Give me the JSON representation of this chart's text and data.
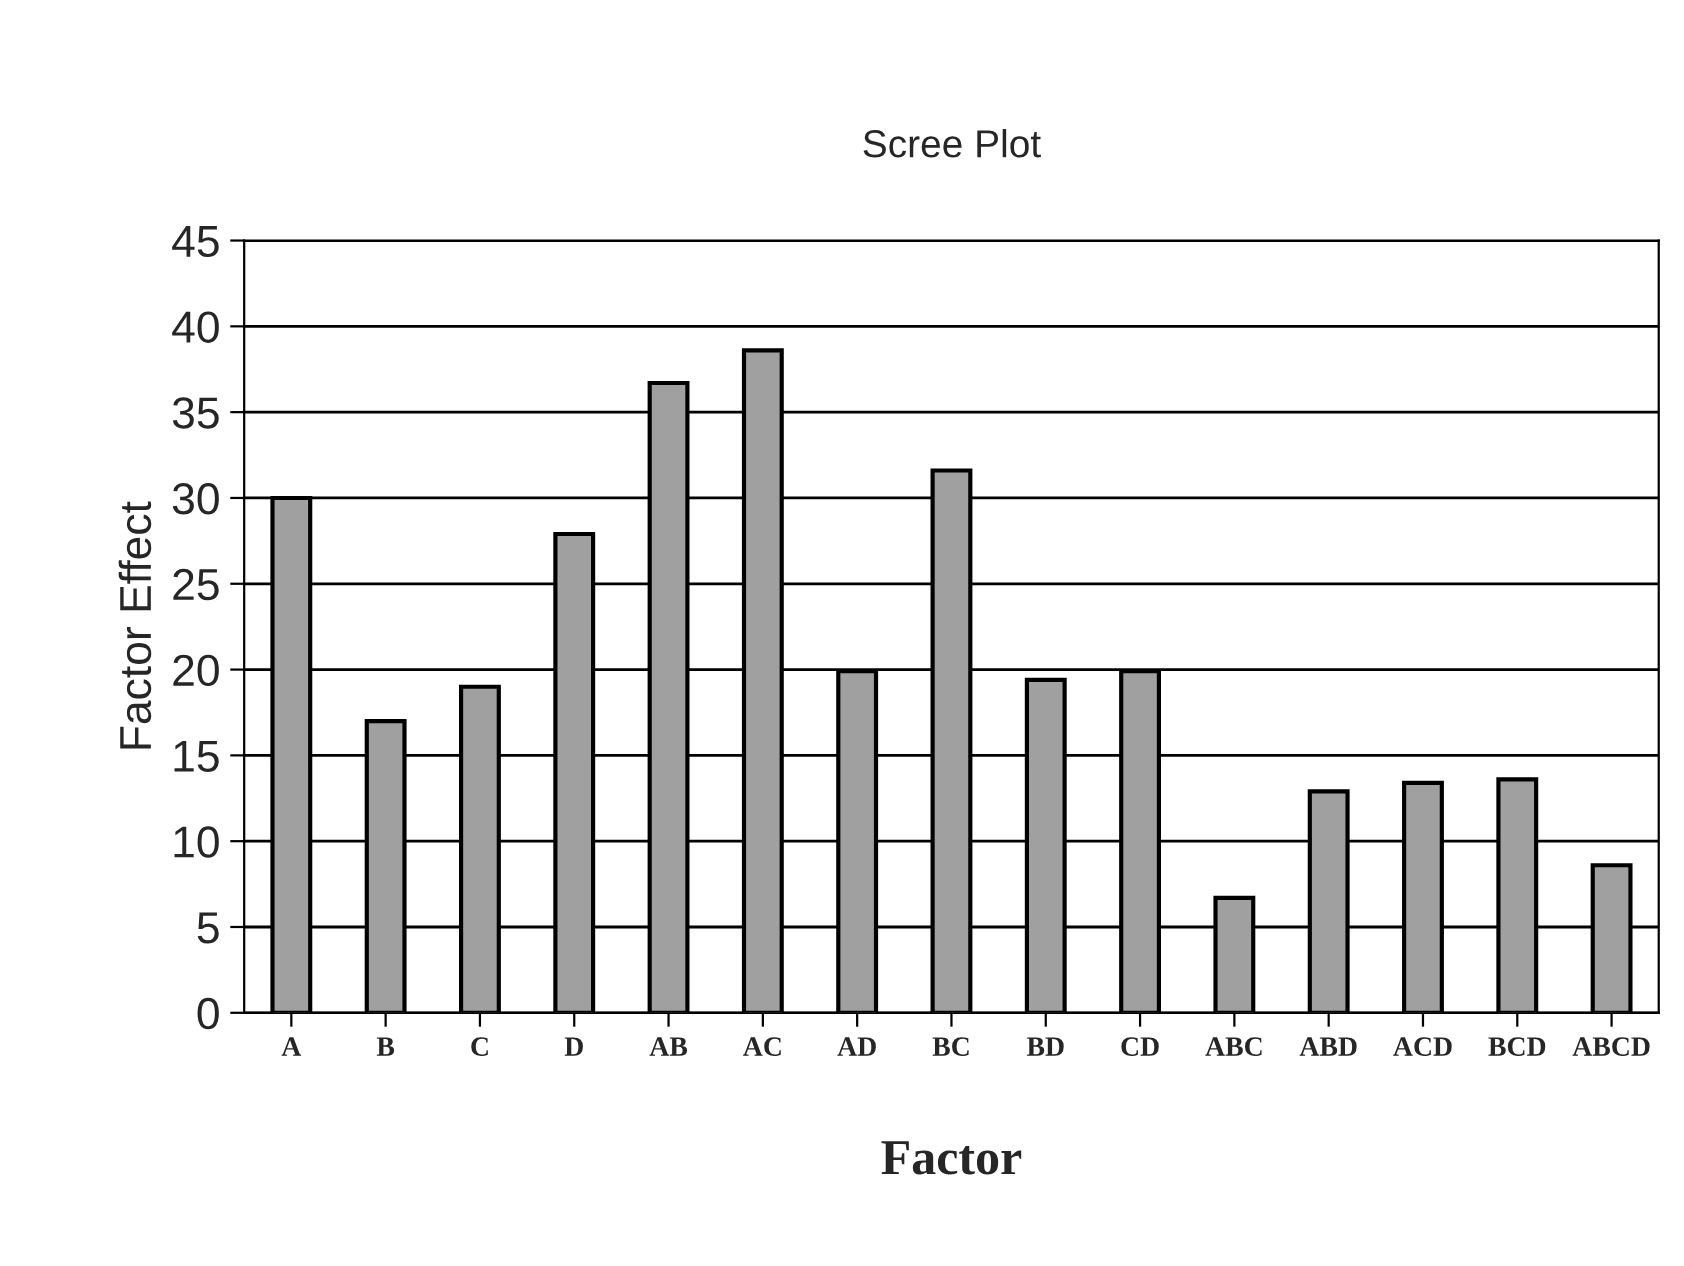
{
  "chart_data": {
    "type": "bar",
    "title": "Scree Plot",
    "xlabel": "Factor",
    "ylabel": "Factor Effect",
    "categories": [
      "A",
      "B",
      "C",
      "D",
      "AB",
      "AC",
      "AD",
      "BC",
      "BD",
      "CD",
      "ABC",
      "ABD",
      "ACD",
      "BCD",
      "ABCD"
    ],
    "values": [
      30,
      17,
      19,
      27.9,
      36.7,
      38.6,
      19.9,
      31.6,
      19.4,
      19.9,
      6.7,
      12.9,
      13.4,
      13.6,
      8.6
    ],
    "color": "#a0a0a0",
    "ylim": [
      0,
      45
    ],
    "yticks": [
      0,
      5,
      10,
      15,
      20,
      25,
      30,
      35,
      40,
      45
    ],
    "grid": "y",
    "legend": false
  }
}
